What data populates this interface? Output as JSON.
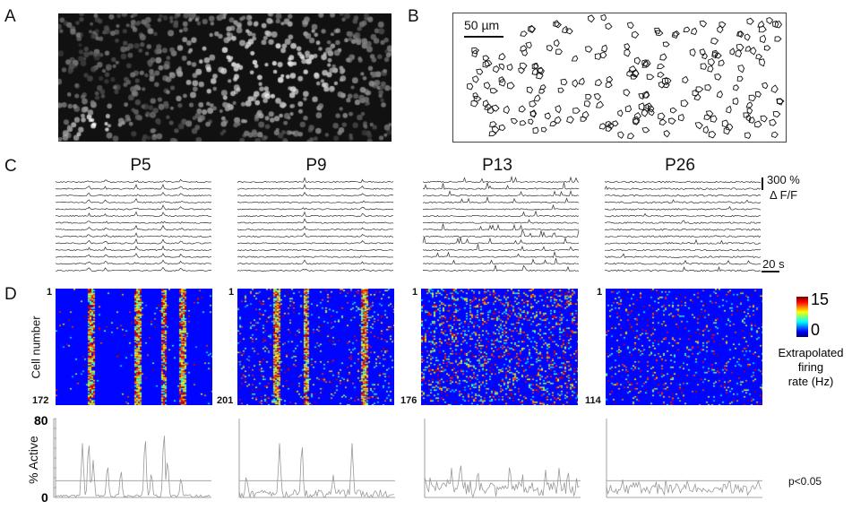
{
  "panels": {
    "a": "A",
    "b": "B",
    "c": "C",
    "d": "D"
  },
  "panel_b": {
    "scalebar": "50 µm"
  },
  "ages": [
    {
      "title": "P5",
      "cells": "172"
    },
    {
      "title": "P9",
      "cells": "201"
    },
    {
      "title": "P13",
      "cells": "176"
    },
    {
      "title": "P26",
      "cells": "114"
    }
  ],
  "traces": {
    "scale_value": "300 %",
    "scale_unit": "Δ F/F",
    "time_bar": "20 s"
  },
  "heatmap": {
    "ylabel": "Cell number",
    "first_cell": "1",
    "colorbar_max": "15",
    "colorbar_min": "0",
    "colorbar_label": [
      "Extrapolated",
      "firing",
      "rate (Hz)"
    ],
    "colormap": "jet"
  },
  "activity": {
    "ylabel": "% Active",
    "ymax": "80",
    "ymin": "0",
    "threshold_label": "p<0.05"
  },
  "chart_data": {
    "type": "line",
    "ylabel": "% Active",
    "ylim": [
      0,
      80
    ],
    "threshold": 17,
    "threshold_label": "p<0.05",
    "series": [
      {
        "name": "P5"
      },
      {
        "name": "P9"
      },
      {
        "name": "P13"
      },
      {
        "name": "P26"
      }
    ]
  }
}
